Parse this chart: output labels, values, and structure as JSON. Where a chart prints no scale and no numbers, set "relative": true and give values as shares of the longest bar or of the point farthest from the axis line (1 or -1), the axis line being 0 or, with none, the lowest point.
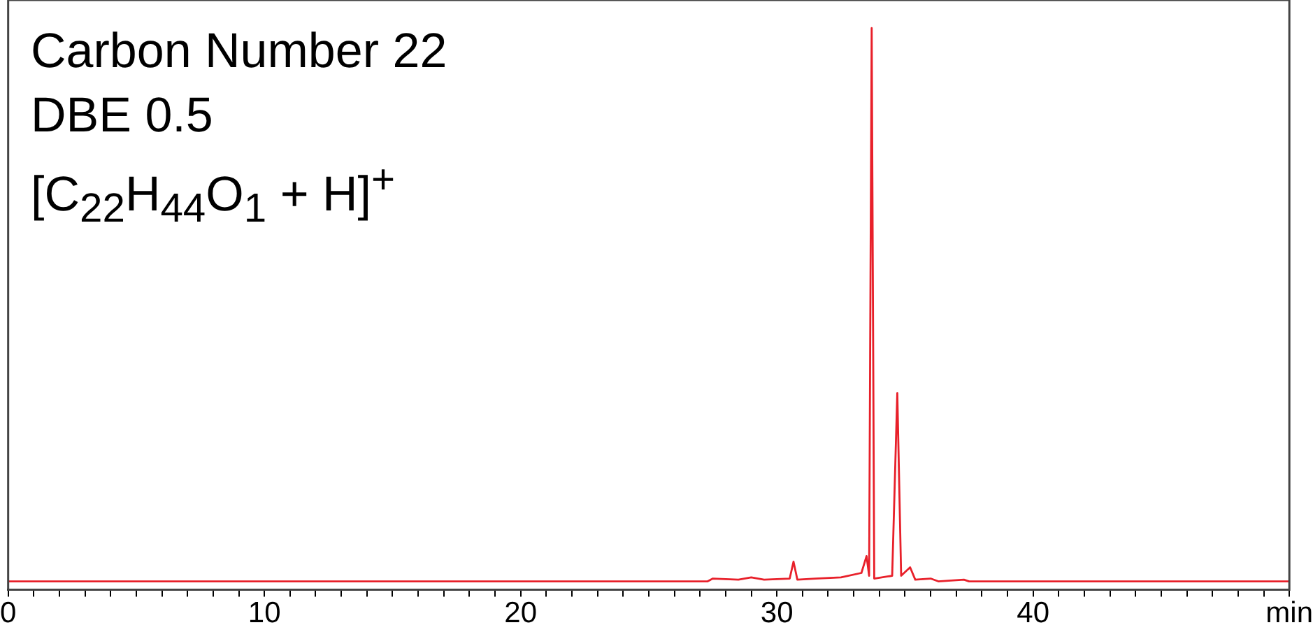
{
  "chart_data": {
    "type": "line",
    "relative": true,
    "annotations": [
      "Carbon Number 22",
      "DBE 0.5",
      "[C$_{22}$H$_{44}$O$_{1}$ + H]$^{+}$"
    ],
    "xlim": [
      0,
      50
    ],
    "xticks": [
      0,
      {
        "value": 1,
        "label": null
      },
      {
        "value": 2,
        "label": null
      },
      {
        "value": 3,
        "label": null
      },
      {
        "value": 4,
        "label": null
      },
      {
        "value": 5,
        "label": null
      },
      {
        "value": 6,
        "label": null
      },
      {
        "value": 7,
        "label": null
      },
      {
        "value": 8,
        "label": null
      },
      {
        "value": 9,
        "label": null
      },
      10,
      {
        "value": 11,
        "label": null
      },
      {
        "value": 12,
        "label": null
      },
      {
        "value": 13,
        "label": null
      },
      {
        "value": 14,
        "label": null
      },
      {
        "value": 15,
        "label": null
      },
      {
        "value": 16,
        "label": null
      },
      {
        "value": 17,
        "label": null
      },
      {
        "value": 18,
        "label": null
      },
      {
        "value": 19,
        "label": null
      },
      20,
      {
        "value": 21,
        "label": null
      },
      {
        "value": 22,
        "label": null
      },
      {
        "value": 23,
        "label": null
      },
      {
        "value": 24,
        "label": null
      },
      {
        "value": 25,
        "label": null
      },
      {
        "value": 26,
        "label": null
      },
      {
        "value": 27,
        "label": null
      },
      {
        "value": 28,
        "label": null
      },
      {
        "value": 29,
        "label": null
      },
      30,
      {
        "value": 31,
        "label": null
      },
      {
        "value": 32,
        "label": null
      },
      {
        "value": 33,
        "label": null
      },
      {
        "value": 34,
        "label": null
      },
      {
        "value": 35,
        "label": null
      },
      {
        "value": 36,
        "label": null
      },
      {
        "value": 37,
        "label": null
      },
      {
        "value": 38,
        "label": null
      },
      {
        "value": 39,
        "label": null
      },
      40,
      {
        "value": 41,
        "label": null
      },
      {
        "value": 42,
        "label": null
      },
      {
        "value": 43,
        "label": null
      },
      {
        "value": 44,
        "label": null
      },
      {
        "value": 45,
        "label": null
      },
      {
        "value": 46,
        "label": null
      },
      {
        "value": 47,
        "label": null
      },
      {
        "value": 48,
        "label": null
      },
      {
        "value": 49,
        "label": null
      },
      {
        "value": 50,
        "label": "min"
      }
    ],
    "grid": false,
    "legend": false,
    "marker": "none",
    "line_style": "solid",
    "series": [
      {
        "color": "#e8202a",
        "x": [
          0,
          5,
          10,
          15,
          20,
          25,
          27.3,
          27.5,
          28.5,
          29,
          29.5,
          30.5,
          30.65,
          30.8,
          31.5,
          32.5,
          33.3,
          33.5,
          33.6,
          33.7,
          33.8,
          34.5,
          34.7,
          34.85,
          35.2,
          35.4,
          36,
          36.3,
          37.3,
          37.5,
          40,
          45,
          50
        ],
        "values": [
          0.015,
          0.015,
          0.015,
          0.015,
          0.015,
          0.015,
          0.015,
          0.02,
          0.018,
          0.022,
          0.018,
          0.02,
          0.05,
          0.018,
          0.02,
          0.022,
          0.03,
          0.06,
          0.025,
          1.0,
          0.02,
          0.025,
          0.35,
          0.025,
          0.04,
          0.018,
          0.02,
          0.015,
          0.018,
          0.015,
          0.015,
          0.015,
          0.015
        ]
      }
    ]
  }
}
